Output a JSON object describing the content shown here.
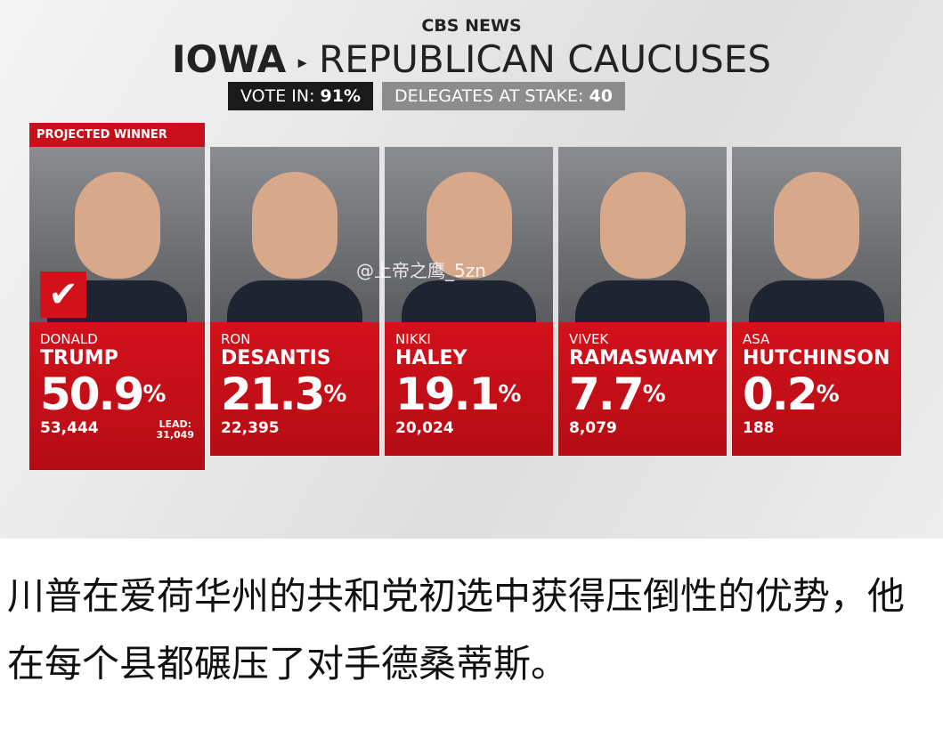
{
  "header": {
    "brand": "CBS NEWS",
    "state": "IOWA",
    "title": "REPUBLICAN CAUCUSES",
    "vote_in_label": "VOTE IN:",
    "vote_in_value": "91%",
    "delegates_label": "DELEGATES AT STAKE:",
    "delegates_value": "40"
  },
  "badge": "PROJECTED WINNER",
  "candidates": [
    {
      "first": "DONALD",
      "last": "TRUMP",
      "pct": "50.9",
      "pct_sign": "%",
      "votes": "53,444",
      "lead_label": "LEAD:",
      "lead_value": "31,049"
    },
    {
      "first": "RON",
      "last": "DESANTIS",
      "pct": "21.3",
      "pct_sign": "%",
      "votes": "22,395"
    },
    {
      "first": "NIKKI",
      "last": "HALEY",
      "pct": "19.1",
      "pct_sign": "%",
      "votes": "20,024"
    },
    {
      "first": "VIVEK",
      "last": "RAMASWAMY",
      "pct": "7.7",
      "pct_sign": "%",
      "votes": "8,079"
    },
    {
      "first": "ASA",
      "last": "HUTCHINSON",
      "pct": "0.2",
      "pct_sign": "%",
      "votes": "188"
    }
  ],
  "watermark": "@上帝之鹰_5zn",
  "caption": "川普在爱荷华州的共和党初选中获得压倒性的优势，他在每个县都碾压了对手德桑蒂斯。"
}
